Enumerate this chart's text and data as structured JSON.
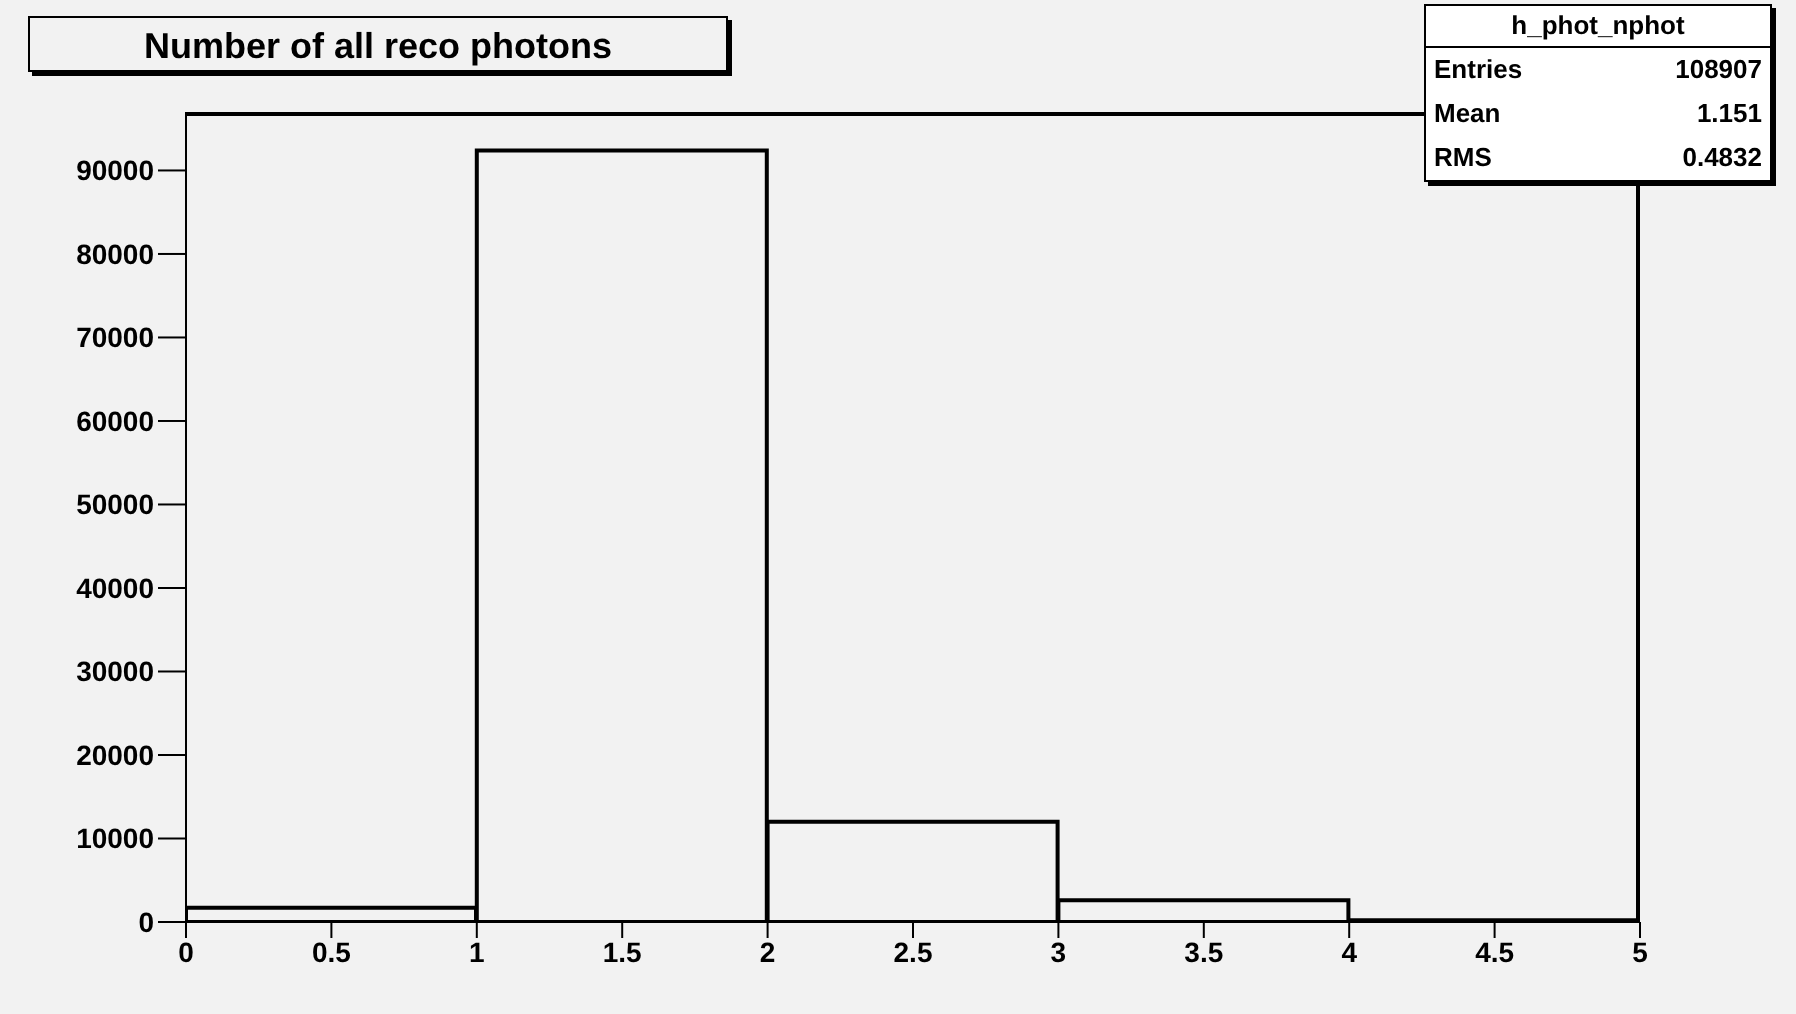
{
  "chart_data": {
    "type": "histogram",
    "title": "Number of all reco photons",
    "bins": [
      0,
      1,
      2,
      3,
      4,
      5
    ],
    "values": [
      1700,
      92400,
      12000,
      2600,
      200
    ],
    "color": "#000000",
    "xlim": [
      0,
      5
    ],
    "xticks": [
      0,
      0.5,
      1,
      1.5,
      2,
      2.5,
      3,
      3.5,
      4,
      4.5,
      5
    ],
    "ylim": [
      0,
      97000
    ],
    "yticks": [
      0,
      10000,
      20000,
      30000,
      40000,
      50000,
      60000,
      70000,
      80000,
      90000
    ],
    "annotations": [
      "h_phot_nphot",
      "Entries",
      "108907",
      "Mean",
      "1.151",
      "RMS",
      "0.4832"
    ]
  }
}
